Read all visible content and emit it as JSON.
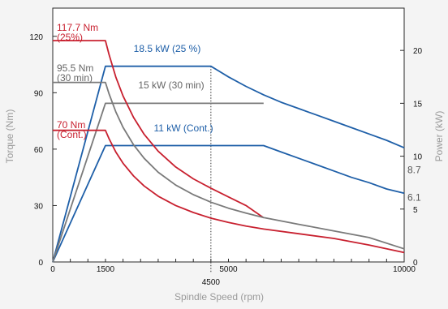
{
  "chart_data": {
    "type": "line",
    "title": "",
    "xlabel": "Spindle Speed (rpm)",
    "ylabel_left": "Torque (Nm)",
    "ylabel_right": "Power (kW)",
    "xlim": [
      0,
      10000
    ],
    "ylim_left": [
      0,
      135
    ],
    "ylim_right": [
      0,
      24
    ],
    "grid": false,
    "x_ticks": [
      0,
      1500,
      5000,
      10000
    ],
    "x_tick_labels": [
      "0",
      "1500",
      "5000",
      "10000"
    ],
    "x_marker": {
      "value": 4500,
      "label": "4500"
    },
    "y_left_ticks": [
      0,
      30,
      60,
      90,
      120
    ],
    "y_left_tick_labels": [
      "0",
      "30",
      "60",
      "90",
      "120"
    ],
    "y_right_ticks": [
      0,
      5,
      10,
      15,
      20
    ],
    "y_right_tick_labels": [
      "0",
      "5",
      "10",
      "15",
      "20"
    ],
    "y_right_extra_labels": [
      {
        "value": 8.7,
        "label": "8.7",
        "color": "#555555"
      },
      {
        "value": 6.1,
        "label": "6.1",
        "color": "#555555"
      }
    ],
    "colors": {
      "torque": "#c8202f",
      "power": "#1e5fa8",
      "thirty_min": "#7a7a7a"
    },
    "series": [
      {
        "axis": "right",
        "color": "#1e5fa8",
        "x": [
          0,
          1500,
          4500,
          4700,
          5000,
          5500,
          6000,
          6500,
          7000,
          7500,
          8000,
          8500,
          9000,
          9500,
          10000
        ],
        "y": [
          0,
          18.5,
          18.5,
          18.1,
          17.5,
          16.6,
          15.8,
          15.1,
          14.5,
          13.9,
          13.3,
          12.7,
          12.1,
          11.5,
          10.8
        ]
      },
      {
        "axis": "right",
        "color": "#1e5fa8",
        "x": [
          0,
          1500,
          6000,
          6500,
          7000,
          7500,
          8000,
          8500,
          9000,
          9500,
          10000
        ],
        "y": [
          0,
          11,
          11,
          10.4,
          9.8,
          9.2,
          8.6,
          8.0,
          7.5,
          6.9,
          6.5
        ]
      },
      {
        "axis": "right",
        "color": "#7a7a7a",
        "x": [
          0,
          1500,
          6000
        ],
        "y": [
          0,
          15,
          15
        ]
      },
      {
        "axis": "left",
        "color": "#c8202f",
        "x": [
          0,
          1500,
          1600,
          1800,
          2000,
          2300,
          2600,
          3000,
          3500,
          4000,
          4500,
          5000,
          5500,
          6000
        ],
        "y": [
          117.7,
          117.7,
          110.4,
          98.1,
          88.3,
          76.8,
          67.9,
          58.9,
          50.5,
          44.2,
          39.2,
          34.6,
          30.0,
          23.5
        ]
      },
      {
        "axis": "left",
        "color": "#7a7a7a",
        "x": [
          0,
          1500,
          1600,
          1800,
          2000,
          2300,
          2600,
          3000,
          3500,
          4000,
          4500,
          5000,
          5500,
          6000,
          7000,
          8000,
          9000,
          10000
        ],
        "y": [
          95.5,
          95.5,
          89.5,
          79.6,
          71.6,
          62.3,
          55.1,
          47.7,
          40.9,
          35.8,
          31.8,
          28.6,
          26.0,
          23.6,
          20.0,
          16.5,
          13.0,
          7.0
        ]
      },
      {
        "axis": "left",
        "color": "#c8202f",
        "x": [
          0,
          1500,
          1600,
          1800,
          2000,
          2300,
          2600,
          3000,
          3500,
          4000,
          4500,
          5000,
          5500,
          6000,
          7000,
          8000,
          9000,
          10000
        ],
        "y": [
          70,
          70,
          65.6,
          58.3,
          52.5,
          45.7,
          40.4,
          35.0,
          30.0,
          26.3,
          23.3,
          21.0,
          19.1,
          17.5,
          15.0,
          12.5,
          9.0,
          5.0
        ]
      }
    ],
    "annotations": [
      {
        "lines": [
          "117.7 Nm",
          "(25%)"
        ],
        "color": "#c8202f"
      },
      {
        "lines": [
          "18.5 kW (25 %)"
        ],
        "color": "#1e5fa8"
      },
      {
        "lines": [
          "95.5 Nm",
          "(30 min)"
        ],
        "color": "#666666"
      },
      {
        "lines": [
          "15 kW (30 min)"
        ],
        "color": "#666666"
      },
      {
        "lines": [
          "70 Nm",
          "(Cont.)"
        ],
        "color": "#c8202f"
      },
      {
        "lines": [
          "11 kW (Cont.)"
        ],
        "color": "#1e5fa8"
      }
    ]
  }
}
